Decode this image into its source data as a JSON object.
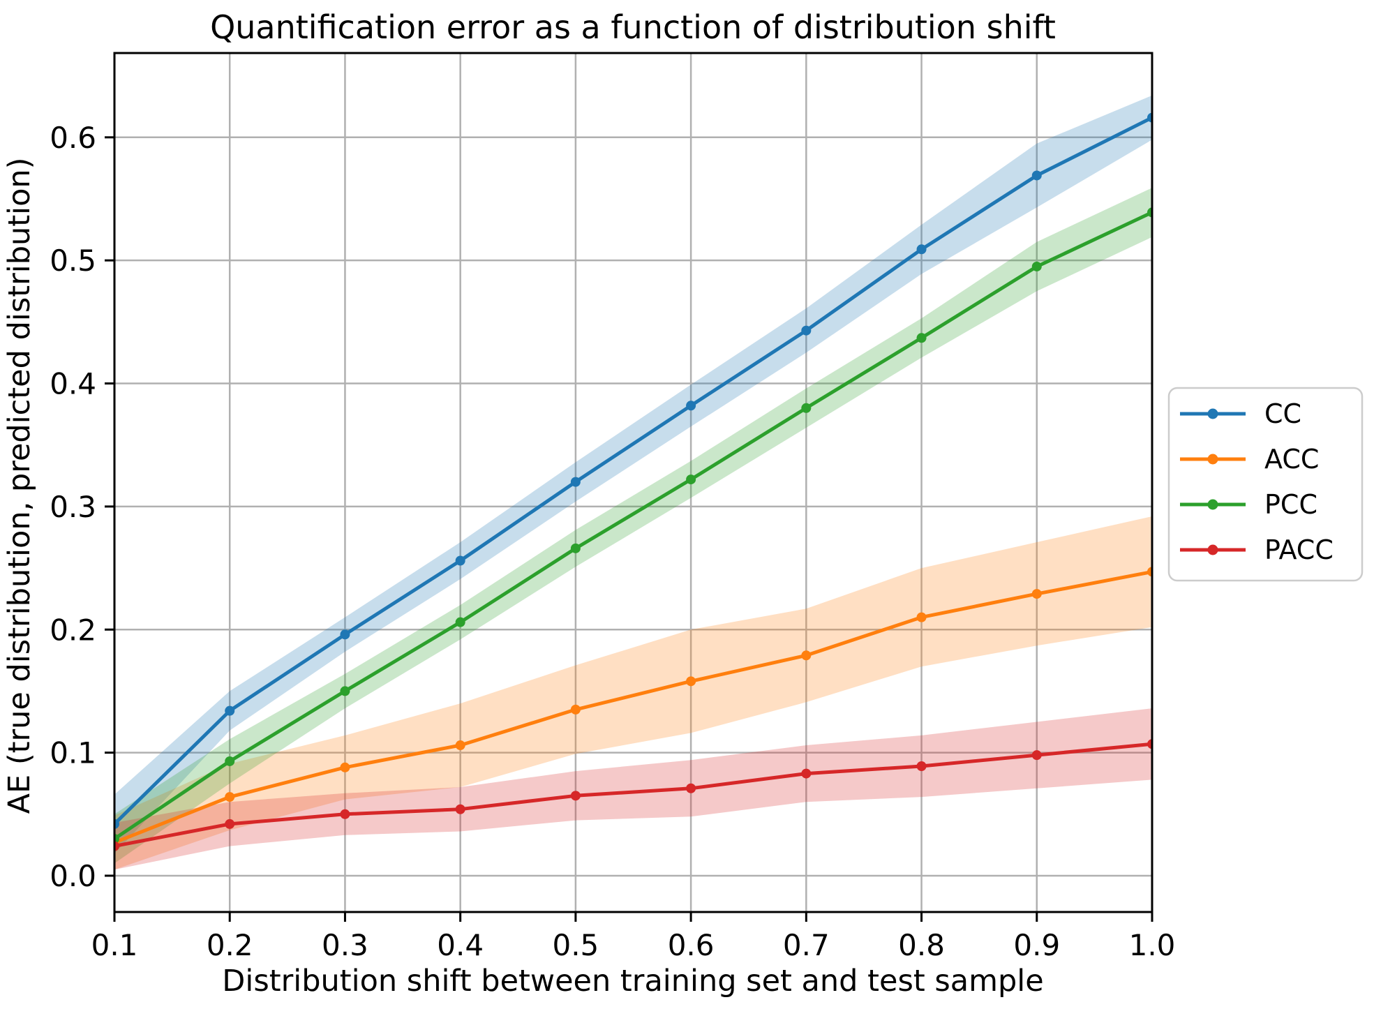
{
  "figure": {
    "background": "#ffffff",
    "text_color": "#000000"
  },
  "chart_data": {
    "type": "line",
    "title": "Quantification error as a function of distribution shift",
    "xlabel": "Distribution shift between training set and test sample",
    "ylabel": "AE (true distribution, predicted distribution)",
    "xlim": [
      0.1,
      1.0
    ],
    "ylim": [
      -0.0295,
      0.6685
    ],
    "grid": true,
    "grid_color": "#b0b0b0",
    "spine_color": "#000000",
    "band_alpha": 0.25,
    "legend_position": "center-right-outside",
    "x": [
      0.1,
      0.2,
      0.3,
      0.4,
      0.5,
      0.6,
      0.7,
      0.8,
      0.9,
      1.0
    ],
    "x_tick_labels": [
      "0.1",
      "0.2",
      "0.3",
      "0.4",
      "0.5",
      "0.6",
      "0.7",
      "0.8",
      "0.9",
      "1.0"
    ],
    "y_ticks": [
      0.0,
      0.1,
      0.2,
      0.3,
      0.4,
      0.5,
      0.6
    ],
    "y_tick_labels": [
      "0.0",
      "0.1",
      "0.2",
      "0.3",
      "0.4",
      "0.5",
      "0.6"
    ],
    "series": [
      {
        "name": "CC",
        "color": "#1f77b4",
        "values": [
          0.042,
          0.134,
          0.196,
          0.256,
          0.32,
          0.382,
          0.443,
          0.509,
          0.569,
          0.616
        ],
        "band_halfwidth": [
          0.024,
          0.016,
          0.014,
          0.015,
          0.016,
          0.017,
          0.018,
          0.02,
          0.026,
          0.018
        ]
      },
      {
        "name": "ACC",
        "color": "#ff7f0e",
        "values": [
          0.027,
          0.064,
          0.088,
          0.106,
          0.135,
          0.158,
          0.179,
          0.21,
          0.229,
          0.247
        ],
        "band_halfwidth": [
          0.022,
          0.027,
          0.026,
          0.034,
          0.036,
          0.042,
          0.038,
          0.04,
          0.042,
          0.045
        ]
      },
      {
        "name": "PCC",
        "color": "#2ca02c",
        "values": [
          0.03,
          0.093,
          0.15,
          0.206,
          0.266,
          0.322,
          0.38,
          0.437,
          0.495,
          0.539
        ],
        "band_halfwidth": [
          0.02,
          0.018,
          0.014,
          0.014,
          0.015,
          0.015,
          0.016,
          0.016,
          0.02,
          0.02
        ]
      },
      {
        "name": "PACC",
        "color": "#d62728",
        "values": [
          0.024,
          0.042,
          0.05,
          0.054,
          0.065,
          0.071,
          0.083,
          0.089,
          0.098,
          0.107
        ],
        "band_halfwidth": [
          0.019,
          0.018,
          0.017,
          0.018,
          0.02,
          0.023,
          0.023,
          0.025,
          0.027,
          0.029
        ]
      }
    ],
    "legend_entries": [
      "CC",
      "ACC",
      "PCC",
      "PACC"
    ]
  }
}
